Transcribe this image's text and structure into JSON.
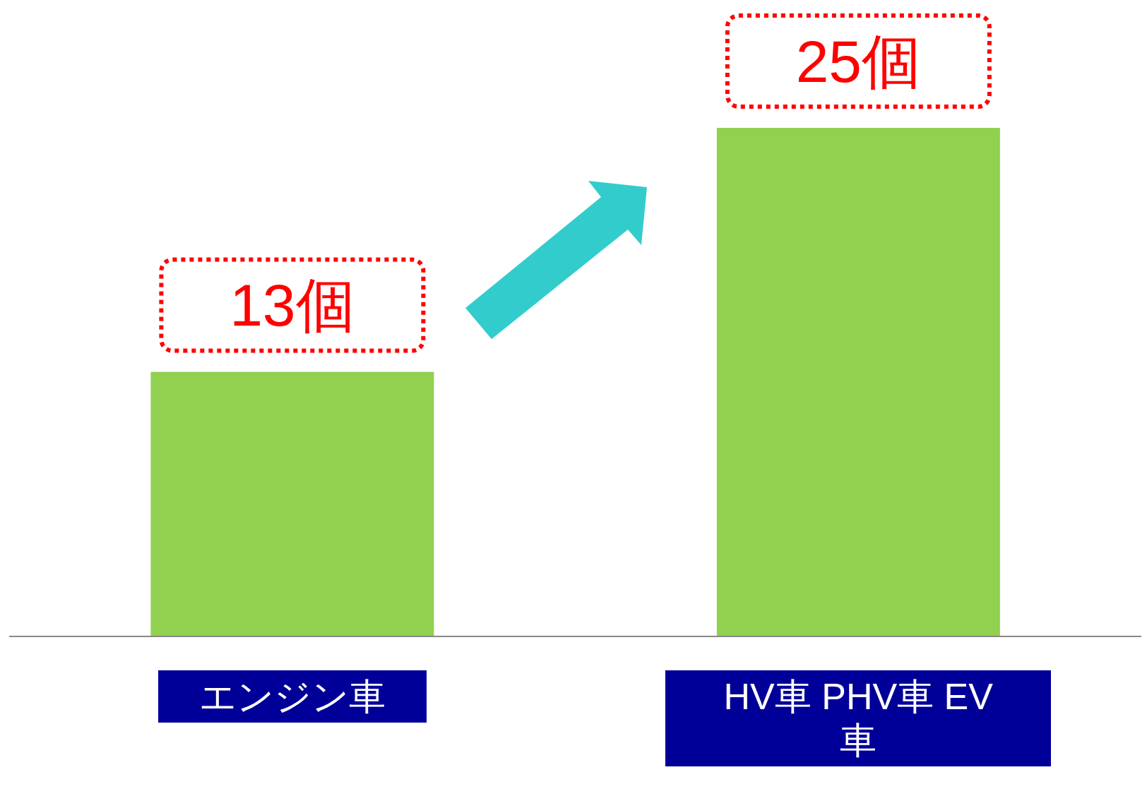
{
  "chart_data": {
    "type": "bar",
    "categories": [
      "エンジン車",
      "HV車 PHV車 EV車"
    ],
    "values": [
      13,
      25
    ],
    "color": "#92d050",
    "value_labels": [
      "13個",
      "25個"
    ]
  }
}
